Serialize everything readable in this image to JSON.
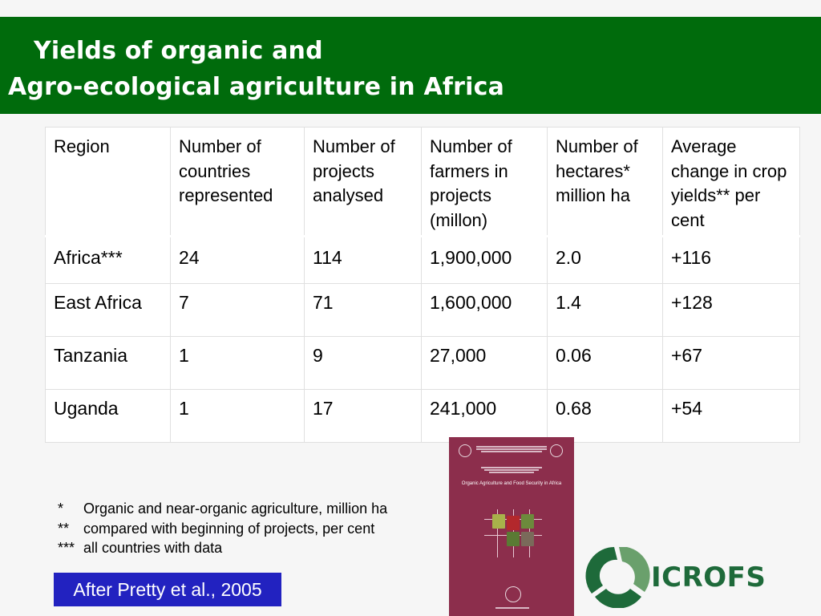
{
  "title": {
    "line1": "Yields of organic and",
    "line2": "Agro-ecological agriculture in Africa"
  },
  "table": {
    "headers": [
      "Region",
      "Number of countries represented",
      "Number of projects analysed",
      "Number of farmers in projects (millon)",
      "Number of hectares* million ha",
      "Average change in crop yields** per cent"
    ],
    "rows": [
      {
        "region": "Africa***",
        "countries": "24",
        "projects": "114",
        "farmers": "1,900,000",
        "hectares": "2.0",
        "yield_change": "+116"
      },
      {
        "region": "East Africa",
        "countries": "7",
        "projects": "71",
        "farmers": "1,600,000",
        "hectares": "1.4",
        "yield_change": "+128"
      },
      {
        "region": "Tanzania",
        "countries": "1",
        "projects": "9",
        "farmers": "27,000",
        "hectares": "0.06",
        "yield_change": "+67"
      },
      {
        "region": "Uganda",
        "countries": "1",
        "projects": "17",
        "farmers": "241,000",
        "hectares": "0.68",
        "yield_change": "+54"
      }
    ]
  },
  "footnotes": [
    {
      "mark": "*",
      "text": "Organic and near-organic agriculture, million ha"
    },
    {
      "mark": "**",
      "text": "compared with beginning of projects, per cent"
    },
    {
      "mark": "***",
      "text": "all countries with data"
    }
  ],
  "citation": "After Pretty et al., 2005",
  "book_cover": {
    "title": "Organic Agriculture and Food Security in Africa",
    "color": "#8c2e4c"
  },
  "logo": {
    "text": "ICROFS",
    "color": "#1e6a3a"
  },
  "colors": {
    "title_bar": "#006b0c",
    "citation_bg": "#2222c0"
  }
}
